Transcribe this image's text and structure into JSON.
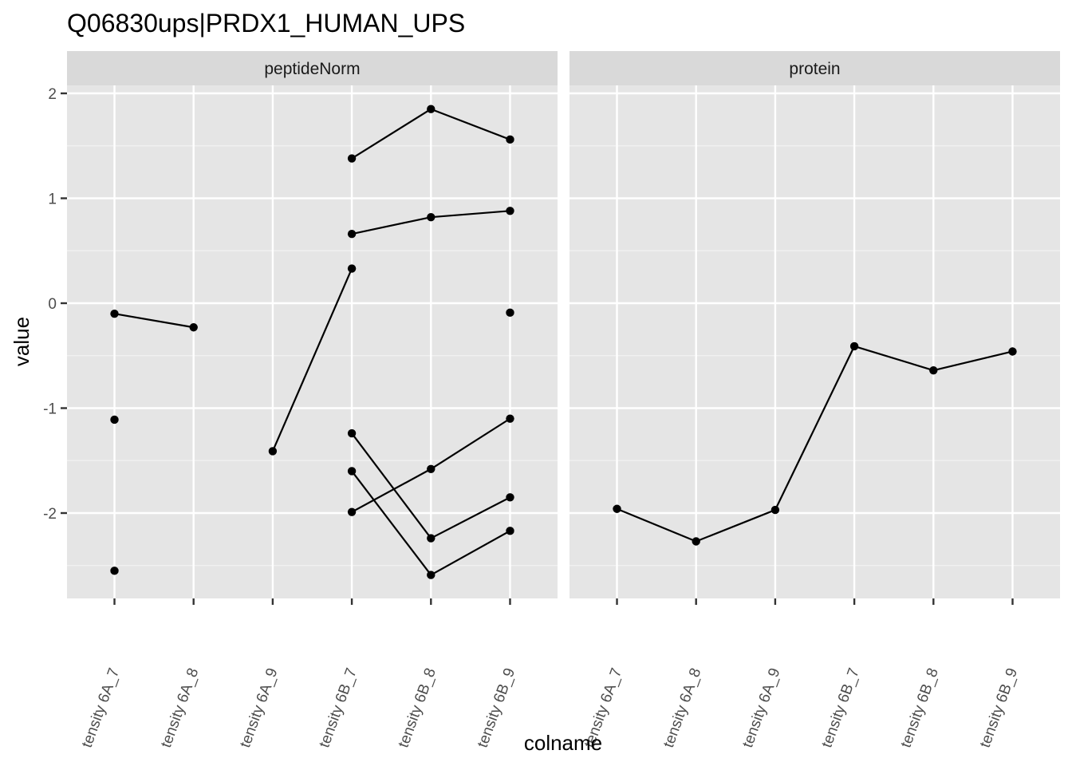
{
  "chart_data": {
    "type": "line",
    "title": "Q06830ups|PRDX1_HUMAN_UPS",
    "xlabel": "colname",
    "ylabel": "value",
    "ylim": [
      -2.8,
      2.0
    ],
    "yticks": [
      2,
      1,
      0,
      -1,
      -2
    ],
    "categories": [
      "tensity 6A_7",
      "tensity 6A_8",
      "tensity 6A_9",
      "tensity 6B_7",
      "tensity 6B_8",
      "tensity 6B_9"
    ],
    "panels": [
      {
        "name": "peptideNorm",
        "series": [
          {
            "values": [
              null,
              null,
              null,
              1.38,
              1.85,
              1.56
            ]
          },
          {
            "values": [
              null,
              null,
              null,
              0.66,
              0.82,
              0.88
            ]
          },
          {
            "values": [
              -0.1,
              -0.23,
              null,
              null,
              null,
              -0.09
            ]
          },
          {
            "values": [
              null,
              null,
              -1.41,
              0.33,
              null,
              null
            ]
          },
          {
            "values": [
              -1.11,
              null,
              null,
              -1.24,
              -2.24,
              -1.85
            ]
          },
          {
            "values": [
              null,
              null,
              null,
              -1.99,
              -1.58,
              -1.1
            ]
          },
          {
            "values": [
              -2.55,
              null,
              null,
              -1.6,
              -2.59,
              -2.17
            ]
          }
        ]
      },
      {
        "name": "protein",
        "series": [
          {
            "values": [
              -1.96,
              -2.27,
              -1.97,
              -0.41,
              -0.64,
              -0.46
            ]
          }
        ]
      }
    ],
    "background": "#e5e5e5",
    "strip_color": "#d9d9d9",
    "grid": true,
    "line_color": "#000000",
    "point_color": "#000000"
  }
}
